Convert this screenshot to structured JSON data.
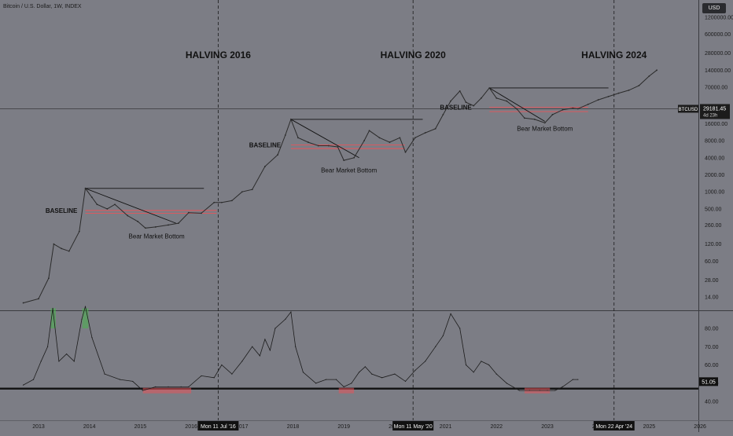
{
  "header": {
    "title": "Bitcoin / U.S. Dollar, 1W, INDEX",
    "currency": "USD"
  },
  "price_tag": {
    "symbol": "BTCUSD",
    "value": "29181.45",
    "countdown": "4d 23h"
  },
  "rsi_tag": {
    "value": "51.05"
  },
  "halving_labels": [
    "HALVING 2016",
    "HALVING 2020",
    "HALVING 2024"
  ],
  "halving_dates": [
    "Mon 11 Jul '16",
    "Mon 11 May '20",
    "Mon 22 Apr '24"
  ],
  "annotations": {
    "baseline": "BASELINE",
    "bear_bottom": "Bear Market Bottom"
  },
  "colors": {
    "background": "#7c7d85",
    "price": "#2b2b2b",
    "baseline_band": "#e8545a",
    "rsi_line": "#1c1c1c",
    "rsi_overbought": "#4caf50",
    "rsi_oversold": "#e8545a"
  },
  "chart_data": [
    {
      "type": "line",
      "name": "BTCUSD weekly price",
      "scale": "log",
      "ylim": [
        9,
        1350000
      ],
      "yticks": [
        "1200000.00",
        "600000.00",
        "280000.00",
        "140000.00",
        "70000.00",
        "32000.00",
        "16000.00",
        "8000.00",
        "4000.00",
        "2000.00",
        "1000.00",
        "500.00",
        "260.00",
        "120.00",
        "60.00",
        "28.00",
        "14.00"
      ],
      "x_labels": [
        "2013",
        "2014",
        "2015",
        "2016",
        "2017",
        "2018",
        "2019",
        "2020",
        "2021",
        "2022",
        "2023",
        "2024",
        "2025",
        "2026"
      ],
      "x": [
        2012.7,
        2013.0,
        2013.2,
        2013.3,
        2013.45,
        2013.6,
        2013.8,
        2013.92,
        2014.05,
        2014.15,
        2014.35,
        2014.5,
        2014.75,
        2014.95,
        2015.1,
        2015.3,
        2015.55,
        2015.75,
        2015.95,
        2016.2,
        2016.45,
        2016.6,
        2016.8,
        2017.0,
        2017.2,
        2017.45,
        2017.7,
        2017.85,
        2017.96,
        2018.1,
        2018.3,
        2018.5,
        2018.7,
        2018.88,
        2019.0,
        2019.2,
        2019.4,
        2019.5,
        2019.7,
        2019.9,
        2020.1,
        2020.21,
        2020.4,
        2020.6,
        2020.8,
        2020.95,
        2021.1,
        2021.28,
        2021.4,
        2021.55,
        2021.7,
        2021.86,
        2022.0,
        2022.2,
        2022.4,
        2022.55,
        2022.75,
        2022.95,
        2023.1,
        2023.3,
        2023.5,
        2023.6,
        2023.8,
        2024.0,
        2024.2,
        2024.4,
        2024.6,
        2024.8,
        2025.0,
        2025.15
      ],
      "y": [
        11,
        13,
        30,
        120,
        100,
        90,
        200,
        1150,
        800,
        600,
        500,
        600,
        380,
        300,
        230,
        240,
        260,
        280,
        430,
        420,
        650,
        650,
        700,
        1000,
        1100,
        2800,
        4500,
        10000,
        19000,
        9000,
        7500,
        6500,
        6500,
        6200,
        3600,
        4000,
        8000,
        12000,
        9000,
        7500,
        9000,
        5000,
        9000,
        11000,
        13000,
        23000,
        40000,
        60000,
        38000,
        33000,
        45000,
        68000,
        45000,
        40000,
        29000,
        20000,
        19000,
        16500,
        23000,
        28000,
        30000,
        29181,
        35000,
        42000,
        48000,
        55000,
        62000,
        75000,
        110000,
        140000
      ]
    },
    {
      "type": "line",
      "name": "RSI",
      "ylim": [
        35,
        92
      ],
      "yticks": [
        "80.00",
        "70.00",
        "60.00",
        "50.00",
        "40.00"
      ],
      "reference_line": 47,
      "x": [
        2012.7,
        2012.9,
        2013.05,
        2013.18,
        2013.28,
        2013.4,
        2013.55,
        2013.7,
        2013.85,
        2013.92,
        2014.05,
        2014.3,
        2014.6,
        2014.85,
        2015.05,
        2015.3,
        2015.55,
        2015.8,
        2015.95,
        2016.2,
        2016.45,
        2016.6,
        2016.8,
        2017.0,
        2017.2,
        2017.35,
        2017.45,
        2017.55,
        2017.65,
        2017.85,
        2017.96,
        2018.05,
        2018.2,
        2018.45,
        2018.65,
        2018.85,
        2019.0,
        2019.15,
        2019.3,
        2019.42,
        2019.55,
        2019.75,
        2020.0,
        2020.21,
        2020.4,
        2020.6,
        2020.8,
        2020.95,
        2021.1,
        2021.28,
        2021.4,
        2021.55,
        2021.7,
        2021.85,
        2022.0,
        2022.2,
        2022.45,
        2022.65,
        2022.85,
        2023.0,
        2023.15,
        2023.3,
        2023.5,
        2023.6
      ],
      "y": [
        49,
        52,
        62,
        70,
        91,
        62,
        66,
        62,
        85,
        92,
        75,
        55,
        52,
        51,
        46,
        48,
        48,
        48,
        48,
        54,
        53,
        60,
        55,
        62,
        70,
        65,
        74,
        68,
        80,
        85,
        89,
        70,
        56,
        50,
        52,
        52,
        48,
        50,
        56,
        59,
        55,
        53,
        55,
        51,
        57,
        62,
        70,
        76,
        88,
        80,
        60,
        56,
        62,
        60,
        55,
        50,
        46,
        46,
        46,
        46,
        46,
        48,
        52,
        52
      ]
    }
  ]
}
